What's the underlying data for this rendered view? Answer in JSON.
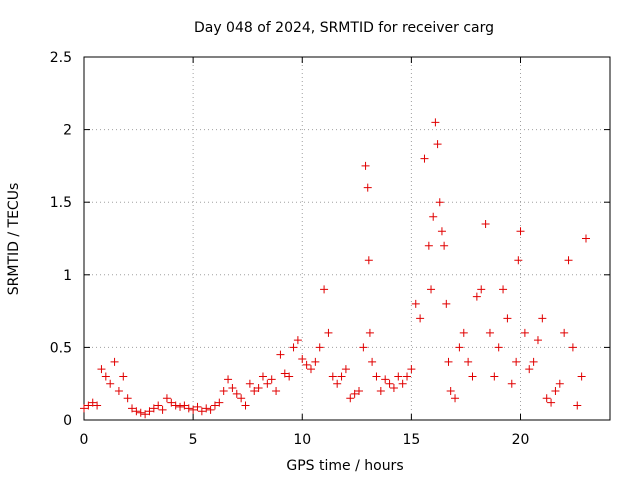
{
  "colors": {
    "series": "#e00000",
    "axis": "#000000",
    "grid": "#a0a0a0",
    "background": "#ffffff"
  },
  "chart_data": {
    "type": "scatter",
    "title": "Day 048 of 2024, SRMTID for receiver carg",
    "xlabel": "GPS time / hours",
    "ylabel": "SRMTID / TECUs",
    "xlim": [
      0,
      24.1
    ],
    "ylim": [
      0,
      2.5
    ],
    "xticks": [
      0,
      5,
      10,
      15,
      20
    ],
    "xtick_labels": [
      "0",
      "5",
      "10",
      "15",
      "20"
    ],
    "yticks": [
      0,
      0.5,
      1,
      1.5,
      2,
      2.5
    ],
    "ytick_labels": [
      "0",
      "0.5",
      "1",
      "1.5",
      "2",
      "2.5"
    ],
    "grid": true,
    "marker": "+",
    "series": [
      {
        "name": "SRMTID",
        "x": [
          0.0,
          0.2,
          0.4,
          0.6,
          0.8,
          1.0,
          1.2,
          1.4,
          1.6,
          1.8,
          2.0,
          2.2,
          2.4,
          2.6,
          2.8,
          3.0,
          3.2,
          3.4,
          3.6,
          3.8,
          4.0,
          4.2,
          4.4,
          4.6,
          4.8,
          5.0,
          5.2,
          5.4,
          5.6,
          5.8,
          6.0,
          6.2,
          6.4,
          6.6,
          6.8,
          7.0,
          7.2,
          7.4,
          7.6,
          7.8,
          8.0,
          8.2,
          8.4,
          8.6,
          8.8,
          9.0,
          9.2,
          9.4,
          9.6,
          9.8,
          10.0,
          10.2,
          10.4,
          10.6,
          10.8,
          11.0,
          11.2,
          11.4,
          11.6,
          11.8,
          12.0,
          12.2,
          12.4,
          12.6,
          12.8,
          12.9,
          13.0,
          13.05,
          13.1,
          13.2,
          13.4,
          13.6,
          13.8,
          14.0,
          14.2,
          14.4,
          14.6,
          14.8,
          15.0,
          15.2,
          15.4,
          15.6,
          15.8,
          15.9,
          16.0,
          16.1,
          16.2,
          16.3,
          16.4,
          16.5,
          16.6,
          16.7,
          16.8,
          17.0,
          17.2,
          17.4,
          17.6,
          17.8,
          18.0,
          18.2,
          18.4,
          18.6,
          18.8,
          19.0,
          19.2,
          19.4,
          19.6,
          19.8,
          19.9,
          20.0,
          20.2,
          20.4,
          20.6,
          20.8,
          21.0,
          21.2,
          21.4,
          21.6,
          21.8,
          22.0,
          22.2,
          22.4,
          22.6,
          22.8,
          23.0
        ],
        "values": [
          0.08,
          0.1,
          0.12,
          0.1,
          0.35,
          0.3,
          0.25,
          0.4,
          0.2,
          0.3,
          0.15,
          0.08,
          0.06,
          0.05,
          0.04,
          0.06,
          0.08,
          0.1,
          0.07,
          0.15,
          0.12,
          0.1,
          0.09,
          0.1,
          0.08,
          0.07,
          0.09,
          0.06,
          0.08,
          0.07,
          0.1,
          0.12,
          0.2,
          0.28,
          0.22,
          0.18,
          0.15,
          0.1,
          0.25,
          0.2,
          0.22,
          0.3,
          0.25,
          0.28,
          0.2,
          0.45,
          0.32,
          0.3,
          0.5,
          0.55,
          0.42,
          0.38,
          0.35,
          0.4,
          0.5,
          0.9,
          0.6,
          0.3,
          0.25,
          0.3,
          0.35,
          0.15,
          0.18,
          0.2,
          0.5,
          1.75,
          1.6,
          1.1,
          0.6,
          0.4,
          0.3,
          0.2,
          0.28,
          0.25,
          0.22,
          0.3,
          0.25,
          0.3,
          0.35,
          0.8,
          0.7,
          1.8,
          1.2,
          0.9,
          1.4,
          2.05,
          1.9,
          1.5,
          1.3,
          1.2,
          0.8,
          0.4,
          0.2,
          0.15,
          0.5,
          0.6,
          0.4,
          0.3,
          0.85,
          0.9,
          1.35,
          0.6,
          0.3,
          0.5,
          0.9,
          0.7,
          0.25,
          0.4,
          1.1,
          1.3,
          0.6,
          0.35,
          0.4,
          0.55,
          0.7,
          0.15,
          0.12,
          0.2,
          0.25,
          0.6,
          1.1,
          0.5,
          0.1,
          0.3,
          1.25
        ]
      }
    ]
  }
}
